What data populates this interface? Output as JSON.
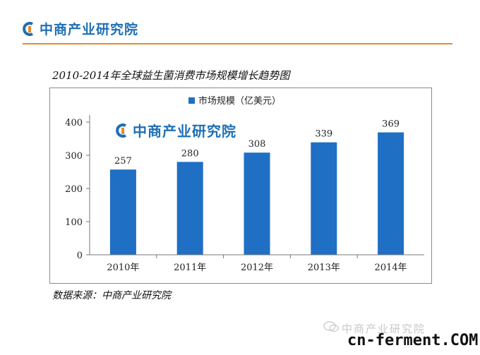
{
  "header": {
    "logo_text": "中商产业研究院"
  },
  "chart_data": {
    "type": "bar",
    "title": "2010-2014年全球益生菌消费市场规模增长趋势图",
    "categories": [
      "2010年",
      "2011年",
      "2012年",
      "2013年",
      "2014年"
    ],
    "series": [
      {
        "name": "市场规模（亿美元）",
        "values": [
          257,
          280,
          308,
          339,
          369
        ]
      }
    ],
    "ylim": [
      0,
      400
    ],
    "yticks": [
      0,
      100,
      200,
      300,
      400
    ],
    "grid": false,
    "legend": "top-center",
    "bar_color": "#1f6fc4"
  },
  "watermark": {
    "logo_text": "中商产业研究院"
  },
  "source": {
    "text": "数据来源：中商产业研究院"
  },
  "footer": {
    "watermark_text": "中商产业研究院",
    "brand_text": "cn-ferment.COM"
  }
}
